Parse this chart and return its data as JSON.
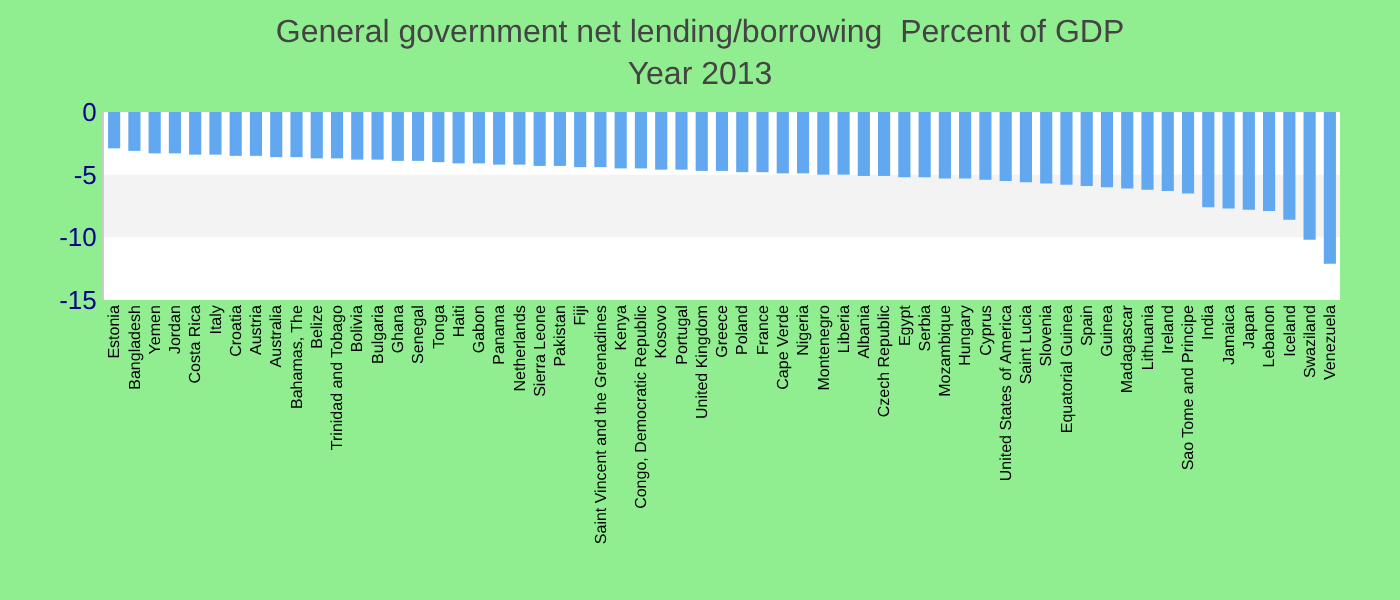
{
  "chart_data": {
    "type": "bar",
    "title": "General government net lending/borrowing  Percent of GDP",
    "subtitle": "Year 2013",
    "categories": [
      "Estonia",
      "Bangladesh",
      "Yemen",
      "Jordan",
      "Costa Rica",
      "Italy",
      "Croatia",
      "Austria",
      "Australia",
      "Bahamas, The",
      "Belize",
      "Trinidad and Tobago",
      "Bolivia",
      "Bulgaria",
      "Ghana",
      "Senegal",
      "Tonga",
      "Haiti",
      "Gabon",
      "Panama",
      "Netherlands",
      "Sierra Leone",
      "Pakistan",
      "Fiji",
      "Saint Vincent and the Grenadines",
      "Kenya",
      "Congo, Democratic Republic",
      "Kosovo",
      "Portugal",
      "United Kingdom",
      "Greece",
      "Poland",
      "France",
      "Cape Verde",
      "Nigeria",
      "Montenegro",
      "Liberia",
      "Albania",
      "Czech Republic",
      "Egypt",
      "Serbia",
      "Mozambique",
      "Hungary",
      "Cyprus",
      "United States of America",
      "Saint Lucia",
      "Slovenia",
      "Equatorial Guinea",
      "Spain",
      "Guinea",
      "Madagascar",
      "Lithuania",
      "Ireland",
      "Sao Tome and Principe",
      "India",
      "Jamaica",
      "Japan",
      "Lebanon",
      "Iceland",
      "Swaziland",
      "Venezuela"
    ],
    "values": [
      -2.9,
      -3.1,
      -3.3,
      -3.3,
      -3.4,
      -3.4,
      -3.5,
      -3.5,
      -3.6,
      -3.6,
      -3.7,
      -3.7,
      -3.8,
      -3.8,
      -3.9,
      -3.9,
      -4.0,
      -4.1,
      -4.1,
      -4.2,
      -4.2,
      -4.3,
      -4.3,
      -4.4,
      -4.4,
      -4.5,
      -4.5,
      -4.6,
      -4.6,
      -4.7,
      -4.7,
      -4.8,
      -4.8,
      -4.9,
      -4.9,
      -5.0,
      -5.0,
      -5.1,
      -5.1,
      -5.2,
      -5.2,
      -5.3,
      -5.3,
      -5.4,
      -5.5,
      -5.6,
      -5.7,
      -5.8,
      -5.9,
      -6.0,
      -6.1,
      -6.2,
      -6.3,
      -6.5,
      -7.6,
      -7.7,
      -7.8,
      -7.9,
      -8.6,
      -10.2,
      -12.1
    ],
    "color": "#62a8f0",
    "ylim": [
      -15,
      0
    ],
    "yticks": [
      -15,
      -10,
      -5,
      0
    ],
    "bands": [
      {
        "axis": "y",
        "from": -10,
        "to": -5,
        "color": "#f3f3f3"
      }
    ],
    "grid": false,
    "legend": false
  }
}
